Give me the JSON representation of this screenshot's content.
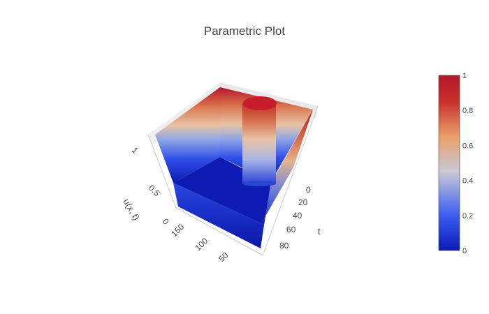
{
  "chart_data": {
    "type": "surface",
    "title": "Parametric Plot",
    "scene": {
      "x_axis": {
        "ticks": [
          "150",
          "100",
          "50"
        ]
      },
      "y_axis": {
        "label": "t",
        "ticks": [
          "0",
          "20",
          "40",
          "60",
          "80"
        ]
      },
      "z_axis": {
        "label": "u(x, t)",
        "ticks": [
          "0",
          "0.5",
          "1"
        ],
        "range": [
          0,
          1
        ]
      }
    },
    "colorbar": {
      "min": 0,
      "max": 1,
      "ticks": [
        "0",
        "0.2",
        "0.4",
        "0.6",
        "0.8",
        "1"
      ],
      "colorscale": [
        "#0d1ab3",
        "#3a5ef0",
        "#c9c9d6",
        "#e8a06a",
        "#c9302c",
        "#b2182b"
      ]
    },
    "series": [
      {
        "description_values": {
          "surface_min": 0,
          "surface_max": 1
        }
      }
    ]
  }
}
